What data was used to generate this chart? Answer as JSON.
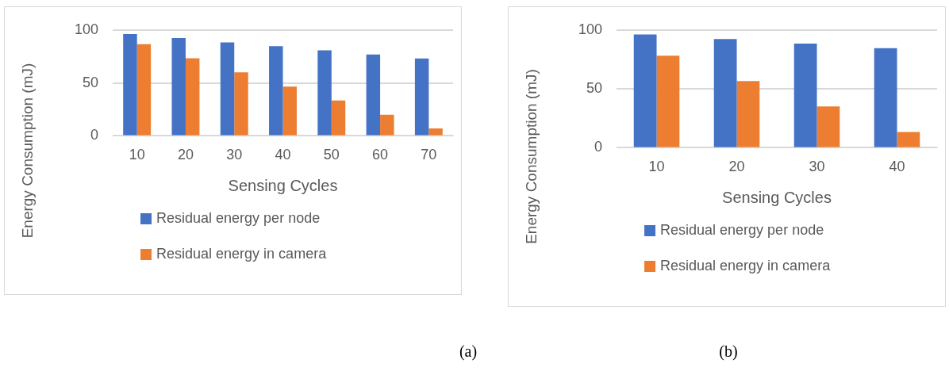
{
  "chart_data": [
    {
      "type": "bar",
      "categories": [
        "10",
        "20",
        "30",
        "40",
        "50",
        "60",
        "70"
      ],
      "xlabel": "Sensing Cycles",
      "ylabel": "Energy Consumption (mJ)",
      "ylim": [
        0,
        100
      ],
      "yticks": [
        0,
        50,
        100
      ],
      "grid": "y",
      "legend": "bottom",
      "annotations": [
        "(a)"
      ],
      "series": [
        {
          "name": "Residual energy per node",
          "color": "#4472c4",
          "values": [
            96.2,
            92.3,
            88.2,
            84.6,
            80.8,
            76.9,
            73.1
          ]
        },
        {
          "name": "Residual energy in camera",
          "color": "#ed7d31",
          "values": [
            86.5,
            73.3,
            59.9,
            46.6,
            33.4,
            20,
            7
          ]
        }
      ]
    },
    {
      "type": "bar",
      "categories": [
        "10",
        "20",
        "30",
        "40"
      ],
      "xlabel": "Sensing Cycles",
      "ylabel": "Energy Consumption (mJ)",
      "ylim": [
        0,
        100
      ],
      "yticks": [
        0,
        50,
        100
      ],
      "grid": "y",
      "legend": "bottom",
      "annotations": [
        "(b)"
      ],
      "series": [
        {
          "name": "Residual energy per node",
          "color": "#4472c4",
          "values": [
            96.1,
            92.3,
            88.4,
            84.5
          ]
        },
        {
          "name": "Residual energy in camera",
          "color": "#ed7d31",
          "values": [
            78.1,
            56.7,
            35.1,
            13.4
          ]
        }
      ]
    }
  ]
}
